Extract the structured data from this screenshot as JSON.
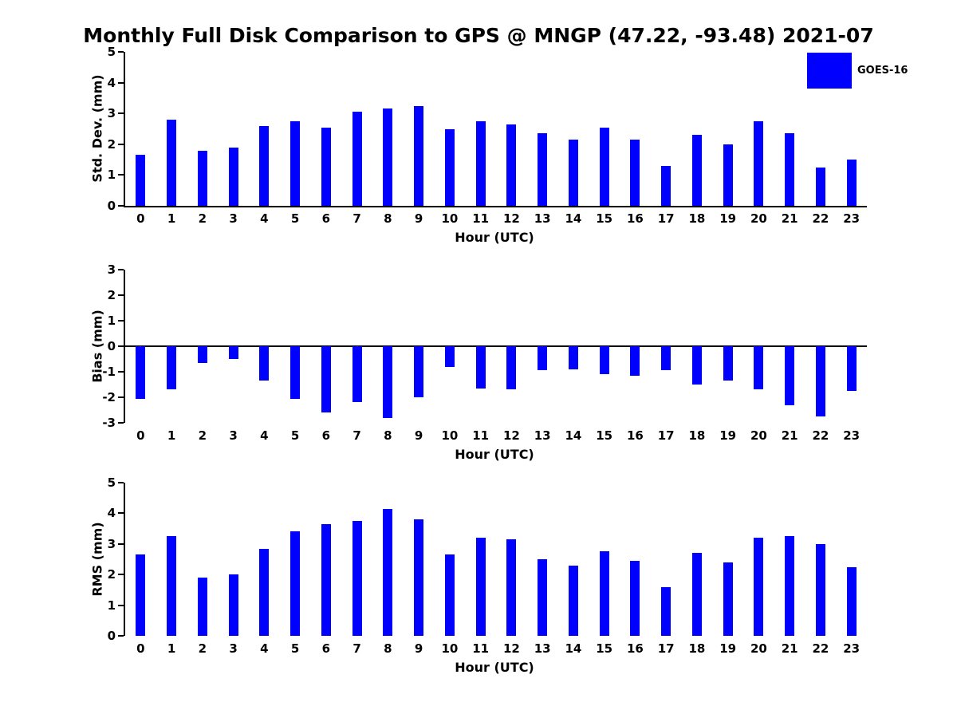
{
  "title": "Monthly Full Disk Comparison to GPS @ MNGP (47.22, -93.48) 2021-07",
  "legend": {
    "label": "GOES-16",
    "color": "#0000ff"
  },
  "bar_color": "#0000ff",
  "chart_data": [
    {
      "type": "bar",
      "title": "Std. Dev. subplot",
      "ylabel": "Std. Dev. (mm)",
      "xlabel": "Hour (UTC)",
      "ylim": [
        0,
        5
      ],
      "ytick_step": 1,
      "grid": false,
      "legend_position": "top-right",
      "categories": [
        "0",
        "1",
        "2",
        "3",
        "4",
        "5",
        "6",
        "7",
        "8",
        "9",
        "10",
        "11",
        "12",
        "13",
        "14",
        "15",
        "16",
        "17",
        "18",
        "19",
        "20",
        "21",
        "22",
        "23"
      ],
      "series": [
        {
          "name": "GOES-16",
          "values": [
            1.65,
            2.8,
            1.8,
            1.9,
            2.6,
            2.75,
            2.55,
            3.05,
            3.15,
            3.25,
            2.5,
            2.75,
            2.65,
            2.35,
            2.15,
            2.55,
            2.15,
            1.3,
            2.3,
            2.0,
            2.75,
            2.35,
            1.25,
            1.5
          ]
        }
      ]
    },
    {
      "type": "bar",
      "title": "Bias subplot",
      "ylabel": "Bias (mm)",
      "xlabel": "Hour (UTC)",
      "ylim": [
        -3,
        3
      ],
      "ytick_step": 1,
      "grid": false,
      "categories": [
        "0",
        "1",
        "2",
        "3",
        "4",
        "5",
        "6",
        "7",
        "8",
        "9",
        "10",
        "11",
        "12",
        "13",
        "14",
        "15",
        "16",
        "17",
        "18",
        "19",
        "20",
        "21",
        "22",
        "23"
      ],
      "series": [
        {
          "name": "GOES-16",
          "values": [
            -2.05,
            -1.7,
            -0.65,
            -0.5,
            -1.35,
            -2.05,
            -2.6,
            -2.2,
            -2.8,
            -2.0,
            -0.8,
            -1.65,
            -1.7,
            -0.95,
            -0.9,
            -1.1,
            -1.15,
            -0.95,
            -1.5,
            -1.35,
            -1.7,
            -2.3,
            -2.75,
            -1.75
          ]
        }
      ]
    },
    {
      "type": "bar",
      "title": "RMS subplot",
      "ylabel": "RMS (mm)",
      "xlabel": "Hour (UTC)",
      "ylim": [
        0,
        5
      ],
      "ytick_step": 1,
      "grid": false,
      "categories": [
        "0",
        "1",
        "2",
        "3",
        "4",
        "5",
        "6",
        "7",
        "8",
        "9",
        "10",
        "11",
        "12",
        "13",
        "14",
        "15",
        "16",
        "17",
        "18",
        "19",
        "20",
        "21",
        "22",
        "23"
      ],
      "series": [
        {
          "name": "GOES-16",
          "values": [
            2.65,
            3.25,
            1.9,
            2.0,
            2.85,
            3.4,
            3.65,
            3.75,
            4.15,
            3.8,
            2.65,
            3.2,
            3.15,
            2.5,
            2.3,
            2.75,
            2.45,
            1.6,
            2.7,
            2.4,
            3.2,
            3.25,
            3.0,
            2.25
          ]
        }
      ]
    }
  ]
}
